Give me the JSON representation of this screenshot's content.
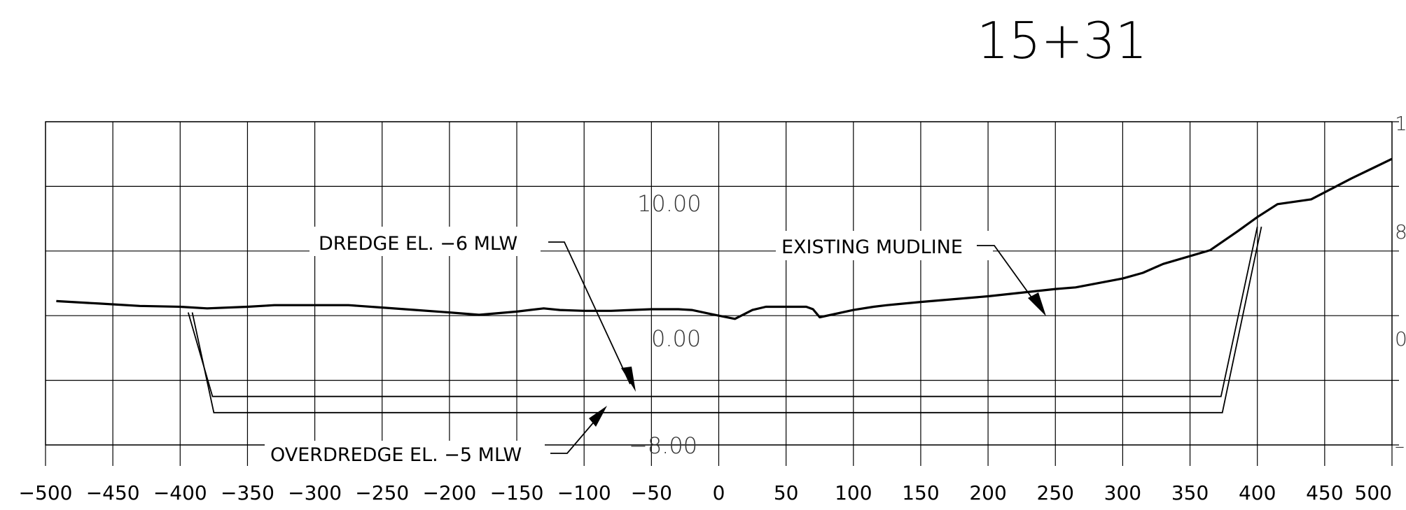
{
  "drawing": {
    "station": "15+31",
    "callouts": {
      "dredge": "DREDGE EL. −6 MLW",
      "overdredge": "OVERDREDGE EL. −5 MLW",
      "mudline": "EXISTING MUDLINE"
    },
    "elevation_labels": [
      "10.00",
      "0.00",
      "−8.00"
    ],
    "right_axis_labels": [
      "1",
      "8",
      "0",
      "–"
    ],
    "x_tick_labels": [
      "−500",
      "−450",
      "−400",
      "−350",
      "−300",
      "−250",
      "−200",
      "−150",
      "−100",
      "−50",
      "0",
      "50",
      "100",
      "150",
      "200",
      "250",
      "300",
      "350",
      "400",
      "450",
      "500"
    ]
  },
  "chart_data": {
    "type": "line",
    "title": "15+31",
    "xlabel": "",
    "ylabel": "",
    "xlim": [
      -500,
      500
    ],
    "ylim": [
      -8,
      12
    ],
    "grid": true,
    "series": [
      {
        "name": "EXISTING MUDLINE",
        "x": [
          -492,
          -460,
          -430,
          -400,
          -380,
          -350,
          -330,
          -300,
          -275,
          -250,
          -225,
          -200,
          -178,
          -150,
          -130,
          -118,
          -100,
          -80,
          -50,
          -30,
          -20,
          0,
          12,
          25,
          35,
          50,
          65,
          70,
          75,
          100,
          115,
          125,
          150,
          200,
          250,
          265,
          300,
          315,
          330,
          365,
          385,
          400,
          415,
          440,
          470,
          485,
          500
        ],
        "y": [
          0.9,
          0.75,
          0.6,
          0.55,
          0.45,
          0.55,
          0.65,
          0.65,
          0.65,
          0.5,
          0.35,
          0.2,
          0.05,
          0.25,
          0.45,
          0.35,
          0.3,
          0.3,
          0.4,
          0.4,
          0.35,
          0.0,
          -0.2,
          0.35,
          0.55,
          0.55,
          0.55,
          0.4,
          -0.1,
          0.35,
          0.55,
          0.65,
          0.85,
          1.2,
          1.65,
          1.75,
          2.3,
          2.65,
          3.2,
          4.05,
          5.2,
          6.1,
          6.9,
          7.2,
          8.5,
          9.1,
          9.7
        ]
      },
      {
        "name": "DREDGE EL. −6 MLW",
        "x": [
          -391,
          -375,
          374,
          403
        ],
        "y": [
          0.2,
          -6,
          -6,
          5.5
        ]
      },
      {
        "name": "OVERDREDGE EL. −5 MLW",
        "x": [
          -394,
          -376,
          373,
          400
        ],
        "y": [
          0.2,
          -5,
          -5,
          5.5
        ]
      }
    ]
  }
}
